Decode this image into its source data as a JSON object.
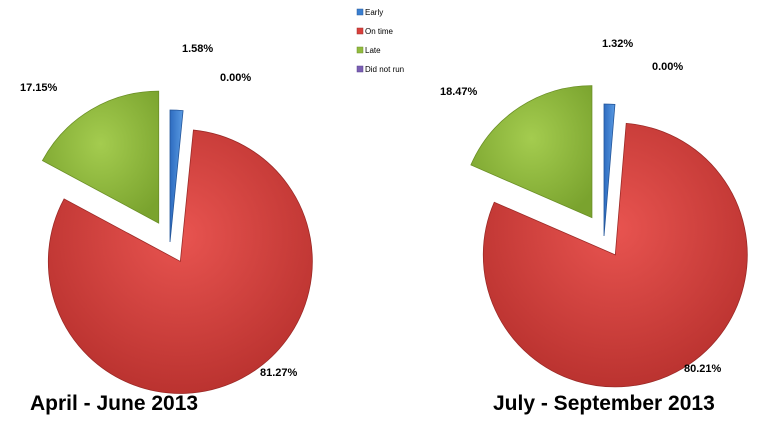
{
  "chart_data": [
    {
      "type": "pie",
      "title": "April - June 2013",
      "categories": [
        "Early",
        "On time",
        "Late",
        "Did not run"
      ],
      "values": [
        1.58,
        81.27,
        17.15,
        0.0
      ],
      "labels": [
        "1.58%",
        "81.27%",
        "17.15%",
        "0.00%"
      ],
      "exploded": true,
      "legend_position": "top-center"
    },
    {
      "type": "pie",
      "title": "July - September 2013",
      "categories": [
        "Early",
        "On time",
        "Late",
        "Did not run"
      ],
      "values": [
        1.32,
        80.21,
        18.47,
        0.0
      ],
      "labels": [
        "1.32%",
        "80.21%",
        "18.47%",
        "0.00%"
      ],
      "exploded": true,
      "legend_position": "top-center"
    }
  ],
  "legend": {
    "items": [
      {
        "label": "Early",
        "color": "#3a7fd0"
      },
      {
        "label": "On time",
        "color": "#d9403c"
      },
      {
        "label": "Late",
        "color": "#92bb3e"
      },
      {
        "label": "Did not run",
        "color": "#7b5fb3"
      }
    ]
  },
  "colors": {
    "Early": "#3a7fd0",
    "On time": "#d9403c",
    "Late": "#92bb3e",
    "Did not run": "#7b5fb3"
  }
}
